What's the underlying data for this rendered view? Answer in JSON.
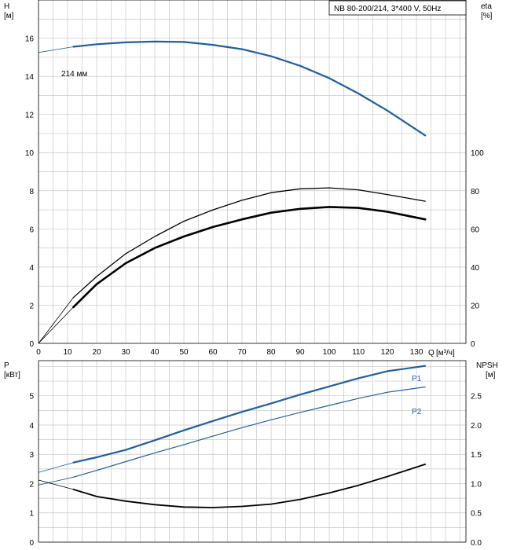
{
  "chart_data": [
    {
      "type": "line",
      "title": "NB 80-200/214, 3*400 V, 50Hz",
      "left_axis": {
        "name": "H",
        "unit": "[м]",
        "range": [
          0,
          18
        ],
        "ticks": [
          0,
          2,
          4,
          6,
          8,
          10,
          12,
          14,
          16
        ]
      },
      "right_axis": {
        "name": "eta",
        "unit": "[%]",
        "range": [
          0,
          180
        ],
        "ticks": [
          0,
          20,
          40,
          60,
          80,
          100
        ]
      },
      "x_axis": {
        "name": "Q",
        "unit": "[м³/ч]",
        "range": [
          0,
          147
        ],
        "ticks": [
          0,
          10,
          20,
          30,
          40,
          50,
          60,
          70,
          80,
          90,
          100,
          110,
          120,
          130
        ]
      },
      "grid": true,
      "series": [
        {
          "name": "214 мм",
          "axis": "left",
          "color": "#1f5fa0",
          "x": [
            0,
            12,
            20,
            30,
            40,
            50,
            60,
            70,
            80,
            90,
            100,
            110,
            120,
            133
          ],
          "values": [
            15.25,
            15.55,
            15.68,
            15.78,
            15.82,
            15.8,
            15.65,
            15.42,
            15.05,
            14.55,
            13.9,
            13.1,
            12.2,
            10.9
          ]
        },
        {
          "name": "",
          "axis": "right",
          "color": "#000000",
          "x": [
            0,
            12,
            20,
            30,
            40,
            50,
            60,
            70,
            80,
            90,
            100,
            110,
            120,
            133
          ],
          "values": [
            0,
            24,
            35,
            47,
            56,
            64,
            70,
            75,
            79,
            81,
            81.5,
            80.5,
            78,
            74.5
          ]
        },
        {
          "name": "",
          "axis": "right",
          "color": "#000000",
          "x": [
            0,
            12,
            20,
            30,
            40,
            50,
            60,
            70,
            80,
            90,
            100,
            110,
            120,
            133
          ],
          "values": [
            0,
            19,
            31,
            42,
            50,
            56,
            61,
            65,
            68.5,
            70.5,
            71.5,
            71,
            69,
            65
          ]
        }
      ]
    },
    {
      "type": "line",
      "left_axis": {
        "name": "P",
        "unit": "[кВт]",
        "range": [
          0,
          6.2
        ],
        "ticks": [
          0,
          1,
          2,
          3,
          4,
          5
        ]
      },
      "right_axis": {
        "name": "NPSH",
        "unit": "[м]",
        "range": [
          0,
          3.1
        ],
        "ticks": [
          "0.0",
          "0.5",
          "1.0",
          "1.5",
          "2.0",
          "2.5"
        ]
      },
      "x_axis": {
        "range": [
          0,
          147
        ]
      },
      "grid": true,
      "series": [
        {
          "name": "P1",
          "axis": "left",
          "color": "#1f5fa0",
          "x": [
            0,
            12,
            20,
            30,
            40,
            50,
            60,
            70,
            80,
            90,
            100,
            110,
            120,
            133
          ],
          "values": [
            2.38,
            2.72,
            2.9,
            3.15,
            3.48,
            3.82,
            4.14,
            4.45,
            4.74,
            5.04,
            5.32,
            5.6,
            5.84,
            6.02
          ]
        },
        {
          "name": "P2",
          "axis": "left",
          "color": "#1f5fa0",
          "x": [
            0,
            12,
            20,
            30,
            40,
            50,
            60,
            70,
            80,
            90,
            100,
            110,
            120,
            133
          ],
          "values": [
            1.95,
            2.22,
            2.45,
            2.75,
            3.05,
            3.33,
            3.62,
            3.91,
            4.18,
            4.43,
            4.67,
            4.91,
            5.12,
            5.3
          ]
        },
        {
          "name": "",
          "axis": "right",
          "color": "#000000",
          "x": [
            0,
            12,
            20,
            30,
            40,
            50,
            60,
            70,
            80,
            90,
            100,
            110,
            120,
            133
          ],
          "values": [
            1.06,
            0.9,
            0.78,
            0.7,
            0.64,
            0.6,
            0.59,
            0.61,
            0.65,
            0.73,
            0.84,
            0.97,
            1.12,
            1.33
          ]
        }
      ]
    }
  ]
}
